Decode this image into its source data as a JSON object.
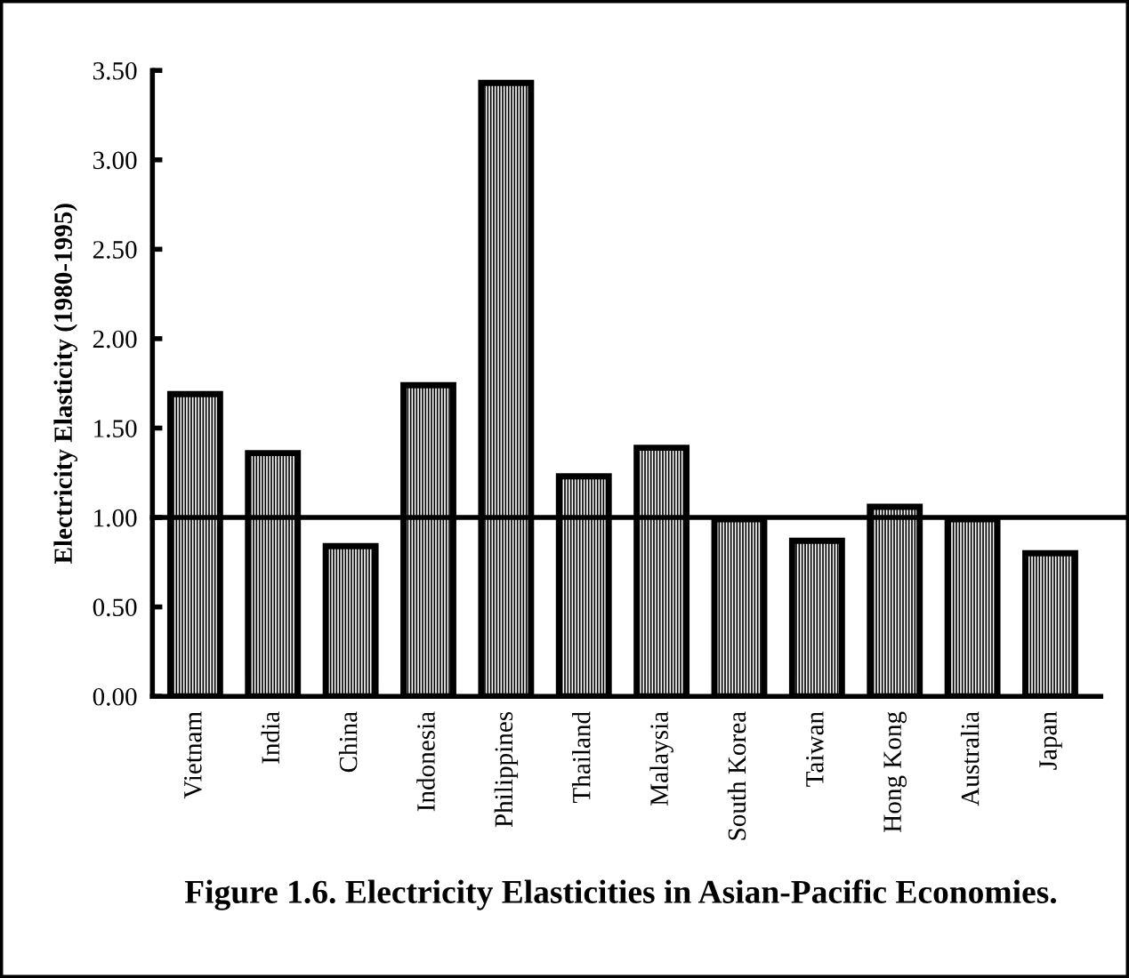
{
  "chart_data": {
    "type": "bar",
    "title": "Figure 1.6. Electricity Elasticities in Asian-Pacific Economies.",
    "ylabel": "Electricity Elasticity (1980-1995)",
    "categories": [
      "Vietnam",
      "India",
      "China",
      "Indonesia",
      "Philippines",
      "Thailand",
      "Malaysia",
      "South Korea",
      "Taiwan",
      "Hong Kong",
      "Australia",
      "Japan"
    ],
    "values": [
      1.69,
      1.36,
      0.84,
      1.74,
      3.43,
      1.23,
      1.39,
      0.99,
      0.87,
      1.06,
      0.99,
      0.8
    ],
    "color": "#000000",
    "ylim": [
      0,
      3.5
    ],
    "yticks": [
      {
        "value": 0,
        "label": "0.00"
      },
      {
        "value": 0.5,
        "label": "0.50"
      },
      {
        "value": 1,
        "label": "1.00"
      },
      {
        "value": 1.5,
        "label": "1.50"
      },
      {
        "value": 2,
        "label": "2.00"
      },
      {
        "value": 2.5,
        "label": "2.50"
      },
      {
        "value": 3,
        "label": "3.00"
      },
      {
        "value": 3.5,
        "label": "3.50"
      }
    ],
    "ref_lines": [
      {
        "axis": "y",
        "value": 1.0,
        "label": null,
        "color": "#000000"
      }
    ],
    "grid": false
  }
}
